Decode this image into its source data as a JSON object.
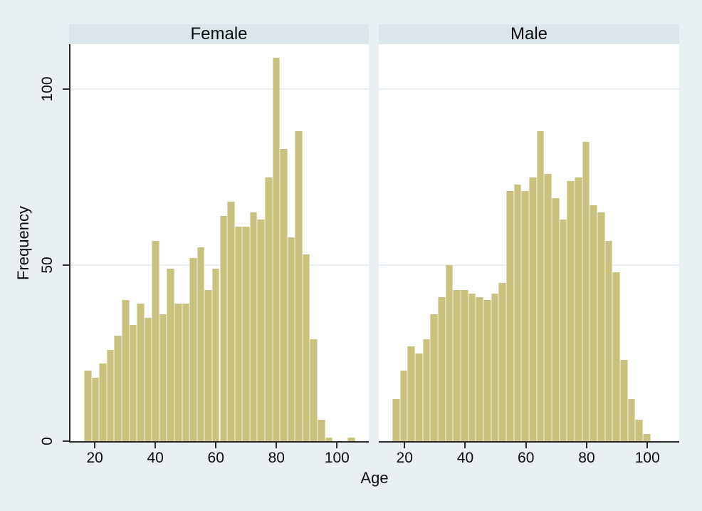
{
  "figure": {
    "background": "#e9f0f4",
    "plot_background": "#ffffff",
    "strip_background": "#dbe6ec",
    "bar_fill": "#cac17e",
    "bar_separator": "#dfdaad",
    "grid_color": "#e7eef2",
    "axis_color": "#2b2b2b",
    "text_color": "#0d0d0d"
  },
  "chart_data": {
    "type": "bar",
    "subtype": "histogram-by-panel",
    "title": "",
    "xlabel": "Age",
    "ylabel": "Frequency",
    "bin_start_age": 16,
    "bin_width_years": 2.5,
    "xlim": [
      11.5,
      110.5
    ],
    "ylim": [
      0,
      112.8
    ],
    "grid": "horizontal-on",
    "x_ticks": [
      20,
      40,
      60,
      80,
      100
    ],
    "y_ticks": [
      0,
      50,
      100
    ],
    "panels": [
      {
        "label": "Female",
        "values": [
          20,
          18,
          22,
          26,
          30,
          40,
          33,
          39,
          35,
          57,
          36,
          49,
          39,
          39,
          52,
          55,
          43,
          49,
          64,
          68,
          61,
          61,
          65,
          63,
          75,
          109,
          83,
          58,
          88,
          53,
          29,
          6,
          1,
          0,
          0,
          1
        ]
      },
      {
        "label": "Male",
        "values": [
          12,
          20,
          27,
          25,
          29,
          36,
          41,
          50,
          43,
          43,
          42,
          41,
          40,
          42,
          45,
          71,
          73,
          71,
          75,
          88,
          76,
          69,
          63,
          74,
          75,
          85,
          67,
          65,
          57,
          48,
          23,
          12,
          6,
          2,
          0,
          0
        ]
      }
    ]
  },
  "layout_note": "two-panel Stata-style histogram, shared rotated y axis at left"
}
